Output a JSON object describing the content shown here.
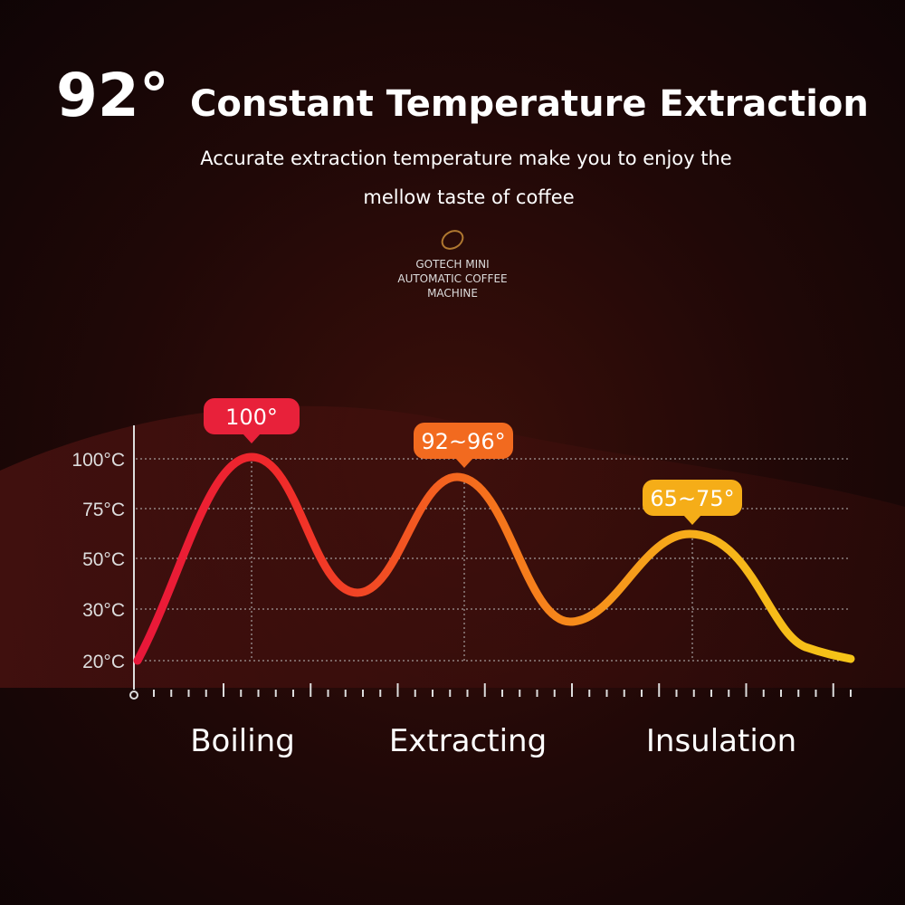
{
  "header": {
    "big": "92°",
    "title": "Constant Temperature Extraction",
    "subtitle_lines": [
      "Accurate extraction temperature make you to enjoy the",
      "mellow taste of coffee"
    ],
    "logo_lines": [
      "GOTECH MINI",
      "AUTOMATIC COFFEE",
      "MACHINE"
    ]
  },
  "chart": {
    "y_labels": [
      "100°C",
      "75°C",
      "50°C",
      "30°C",
      "20°C"
    ],
    "callouts": [
      "100°",
      "92~96°",
      "65~75°"
    ],
    "phases": [
      "Boiling",
      "Extracting",
      "Insulation"
    ]
  }
}
